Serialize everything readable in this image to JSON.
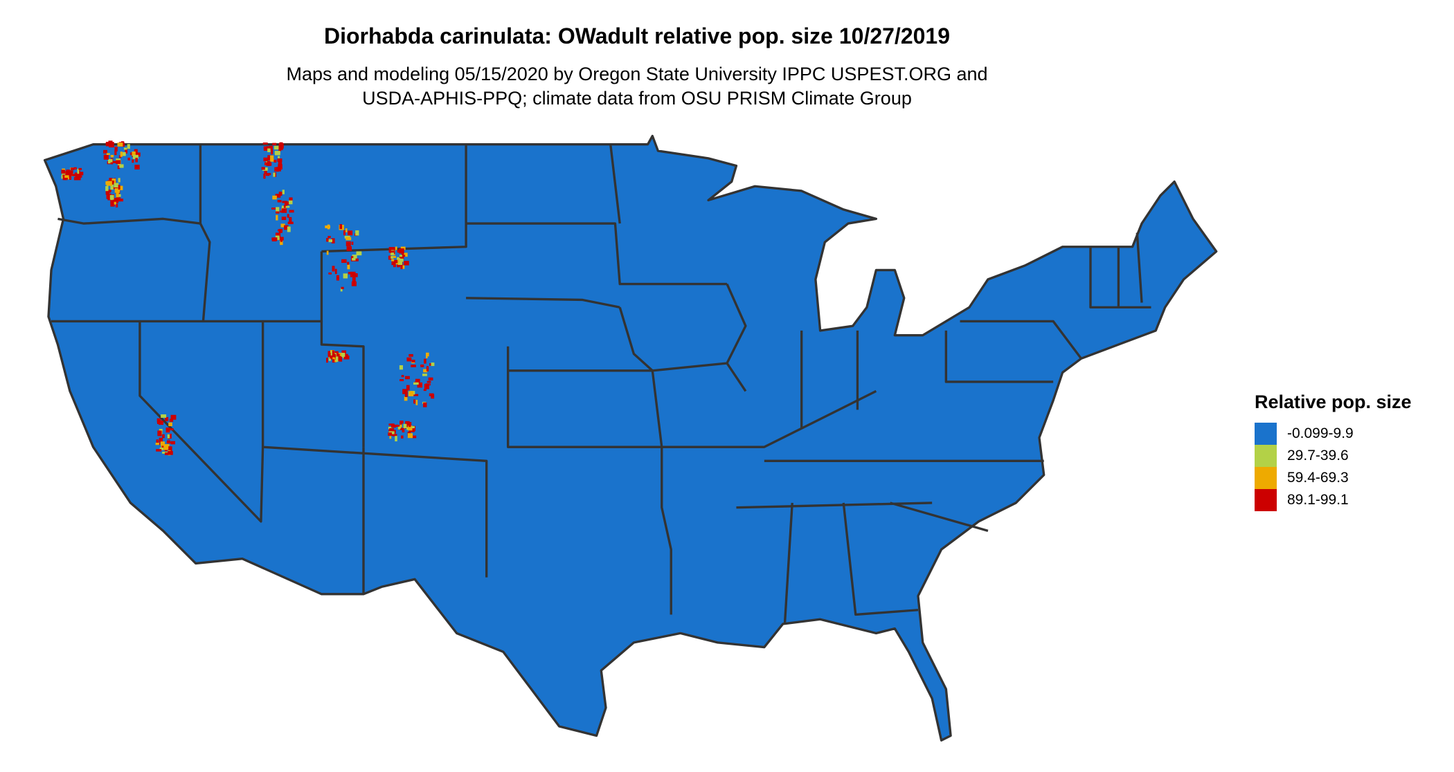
{
  "title": "Diorhabda carinulata: OWadult relative pop. size 10/27/2019",
  "subtitle_lines": [
    "Maps and modeling 05/15/2020 by Oregon State University IPPC USPEST.ORG and",
    "USDA-APHIS-PPQ; climate data from OSU PRISM Climate Group"
  ],
  "map": {
    "region": "Contiguous United States",
    "base_color": "#1a73cc",
    "border_color": "#333333"
  },
  "legend": {
    "title": "Relative pop. size",
    "items": [
      {
        "label": "-0.099-9.9",
        "color": "#1a73cc"
      },
      {
        "label": "29.7-39.6",
        "color": "#b3d147"
      },
      {
        "label": "59.4-69.3",
        "color": "#eeaa00"
      },
      {
        "label": "89.1-99.1",
        "color": "#cc0000"
      }
    ]
  }
}
